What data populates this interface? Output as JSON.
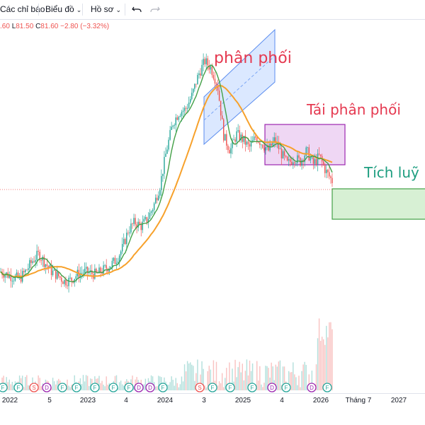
{
  "toolbar": {
    "indicators_label": "Các chỉ báo",
    "chart_label": "Biểu đồ",
    "profile_label": "Hồ sơ",
    "undo_icon": "undo-icon",
    "redo_icon": "redo-icon",
    "chevron_icon": "chevron-down-icon"
  },
  "ohlc": {
    "open_tail": ".60",
    "low_key": "L",
    "low_val": "81.50",
    "close_key": "C",
    "close_val": "81.60",
    "change": "−2.80 (−3.32%)"
  },
  "annotations": {
    "distribution": "phân phối",
    "redistribution": "Tái phân phối",
    "accumulation": "Tích luỹ"
  },
  "colors": {
    "up_candle": "#26a69a",
    "down_candle": "#ef5350",
    "ma_fast": "#43a047",
    "ma_slow": "#f7a12b",
    "channel_fill": "#cfe0ff",
    "box_purple": "#9c27b0",
    "box_green": "#43a047",
    "text_red": "#e53950",
    "text_green": "#1e9e80"
  },
  "x_axis": {
    "labels": [
      "2022",
      "5",
      "2023",
      "4",
      "2024",
      "3",
      "2025",
      "4",
      "2026",
      "Tháng 7",
      "2027"
    ]
  },
  "chart_data": {
    "type": "candlestick",
    "x_ticks": [
      "2022",
      "5",
      "2023",
      "4",
      "2024",
      "3",
      "2025",
      "4",
      "2026",
      "Tháng 7",
      "2027"
    ],
    "price_series": [
      {
        "name": "",
        "approx_closes": [
          62,
          60,
          58,
          57,
          63,
          70,
          75,
          68,
          62,
          59,
          55,
          56,
          60,
          62,
          61,
          60,
          63,
          66,
          70,
          78,
          92,
          98,
          95,
          100,
          110,
          125,
          150,
          170,
          178,
          180,
          190,
          205,
          215,
          210,
          198,
          160,
          150,
          162,
          158,
          152,
          160,
          155,
          150,
          158,
          148,
          140,
          145,
          142,
          150,
          140,
          146,
          135,
          128
        ]
      }
    ],
    "events_row": [
      "F",
      "F",
      "S",
      "D",
      "F",
      "F",
      "F",
      "F",
      "F",
      "D",
      "D",
      "F",
      "S",
      "F",
      "F",
      "F",
      "D",
      "F",
      "D",
      "F"
    ],
    "last": {
      "low": 81.5,
      "close": 81.6,
      "change": -2.8,
      "change_pct": -3.32
    },
    "zones": [
      "phân phối",
      "Tái phân phối",
      "Tích luỹ"
    ],
    "grid": false
  }
}
